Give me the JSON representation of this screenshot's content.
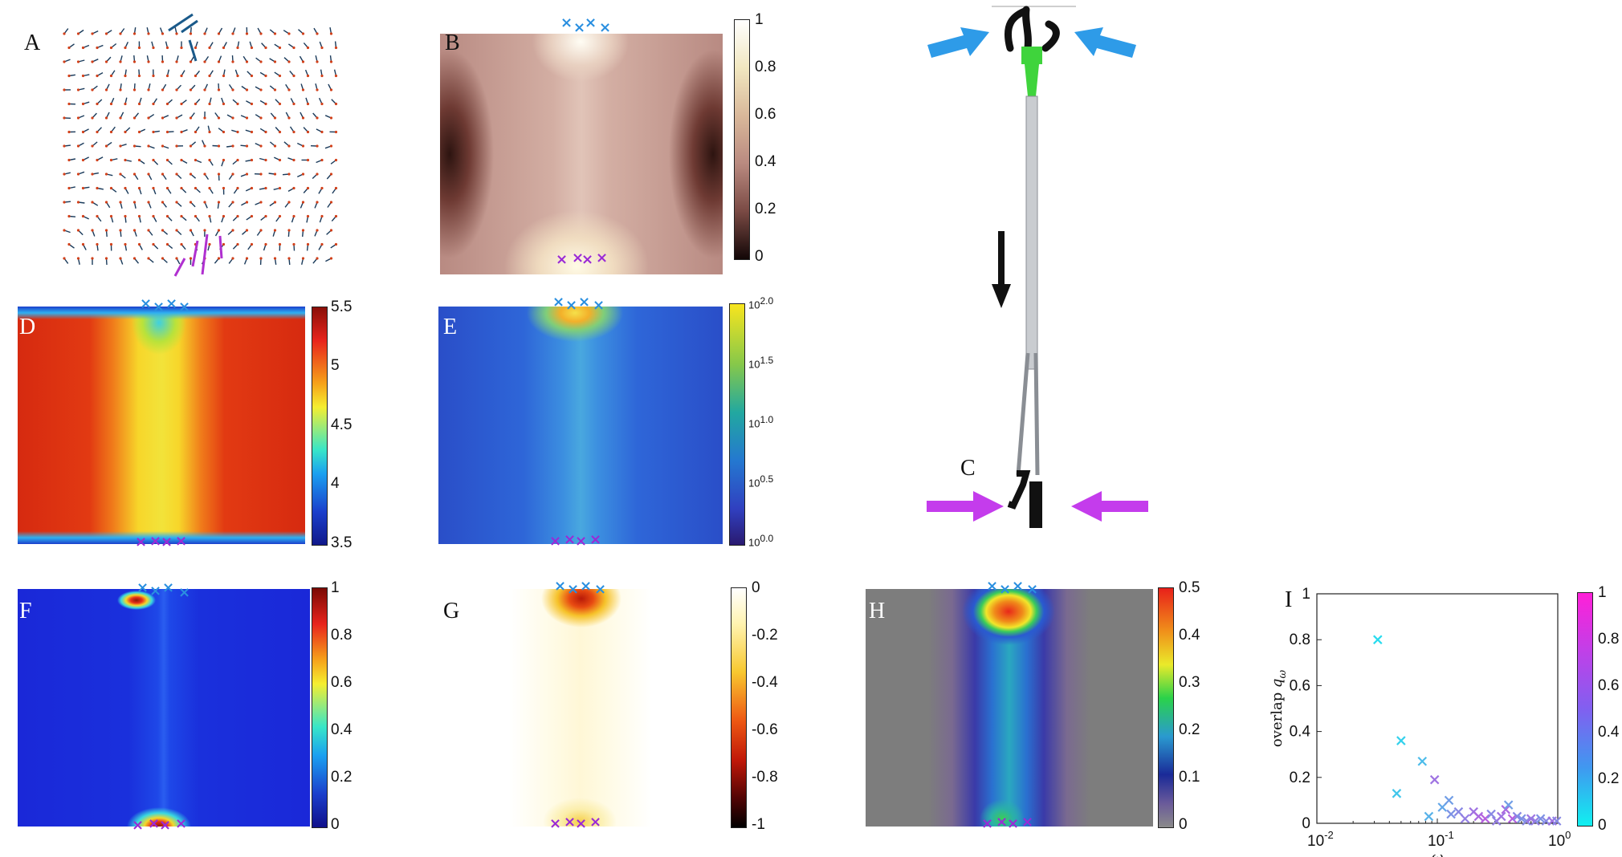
{
  "panels": {
    "A": {
      "label": "A"
    },
    "B": {
      "label": "B",
      "colorbar": [
        "1",
        "0.8",
        "0.6",
        "0.4",
        "0.2",
        "0"
      ]
    },
    "C": {
      "label": "C"
    },
    "D": {
      "label": "D",
      "colorbar": [
        "5.5",
        "5",
        "4.5",
        "4",
        "3.5"
      ]
    },
    "E": {
      "label": "E",
      "colorbar_mantissa": "10",
      "colorbar_exponents": [
        "2.0",
        "1.5",
        "1.0",
        "0.5",
        "0.0"
      ]
    },
    "F": {
      "label": "F",
      "colorbar": [
        "1",
        "0.8",
        "0.6",
        "0.4",
        "0.2",
        "0"
      ]
    },
    "G": {
      "label": "G",
      "colorbar": [
        "0",
        "-0.2",
        "-0.4",
        "-0.6",
        "-0.8",
        "-1"
      ]
    },
    "H": {
      "label": "H",
      "colorbar": [
        "0.5",
        "0.4",
        "0.3",
        "0.2",
        "0.1",
        "0"
      ]
    },
    "I": {
      "label": "I",
      "colorbar": [
        "1",
        "0.8",
        "0.6",
        "0.4",
        "0.2",
        "0"
      ]
    }
  },
  "colors": {
    "input_marker": "#2a8fe0",
    "output_marker": "#9a2ad6",
    "arrow_blue": "#2e9be8",
    "arrow_magenta": "#c43cec"
  },
  "chart_data": {
    "type": "scatter",
    "ylabel_prefix": "overlap",
    "ylabel_symbol": "q",
    "ylabel_sub": "ω",
    "xlabel": "ω",
    "x_scale": "log",
    "xlim": [
      0.01,
      1
    ],
    "ylim": [
      0,
      1
    ],
    "xticks_base": "10",
    "xticks_exp": [
      "-2",
      "-1",
      "0"
    ],
    "yticks": [
      "1",
      "0.8",
      "0.6",
      "0.4",
      "0.2",
      "0"
    ],
    "colorbar_range": [
      0,
      1
    ],
    "points": [
      {
        "x": 0.032,
        "y": 0.8,
        "c": 0.1
      },
      {
        "x": 0.05,
        "y": 0.36,
        "c": 0.15
      },
      {
        "x": 0.046,
        "y": 0.13,
        "c": 0.2
      },
      {
        "x": 0.075,
        "y": 0.27,
        "c": 0.25
      },
      {
        "x": 0.095,
        "y": 0.19,
        "c": 0.6
      },
      {
        "x": 0.085,
        "y": 0.03,
        "c": 0.3
      },
      {
        "x": 0.11,
        "y": 0.07,
        "c": 0.35
      },
      {
        "x": 0.125,
        "y": 0.1,
        "c": 0.4
      },
      {
        "x": 0.13,
        "y": 0.04,
        "c": 0.45
      },
      {
        "x": 0.15,
        "y": 0.05,
        "c": 0.5
      },
      {
        "x": 0.17,
        "y": 0.02,
        "c": 0.55
      },
      {
        "x": 0.2,
        "y": 0.05,
        "c": 0.6
      },
      {
        "x": 0.22,
        "y": 0.03,
        "c": 0.65
      },
      {
        "x": 0.25,
        "y": 0.02,
        "c": 0.7
      },
      {
        "x": 0.28,
        "y": 0.04,
        "c": 0.5
      },
      {
        "x": 0.31,
        "y": 0.01,
        "c": 0.55
      },
      {
        "x": 0.34,
        "y": 0.03,
        "c": 0.6
      },
      {
        "x": 0.37,
        "y": 0.06,
        "c": 0.65
      },
      {
        "x": 0.39,
        "y": 0.08,
        "c": 0.4
      },
      {
        "x": 0.42,
        "y": 0.02,
        "c": 0.7
      },
      {
        "x": 0.46,
        "y": 0.03,
        "c": 0.5
      },
      {
        "x": 0.5,
        "y": 0.02,
        "c": 0.45
      },
      {
        "x": 0.55,
        "y": 0.01,
        "c": 0.5
      },
      {
        "x": 0.6,
        "y": 0.02,
        "c": 0.6
      },
      {
        "x": 0.65,
        "y": 0.01,
        "c": 0.55
      },
      {
        "x": 0.72,
        "y": 0.02,
        "c": 0.45
      },
      {
        "x": 0.8,
        "y": 0.01,
        "c": 0.5
      },
      {
        "x": 0.9,
        "y": 0.01,
        "c": 0.6
      },
      {
        "x": 0.98,
        "y": 0.01,
        "c": 0.5
      }
    ]
  }
}
